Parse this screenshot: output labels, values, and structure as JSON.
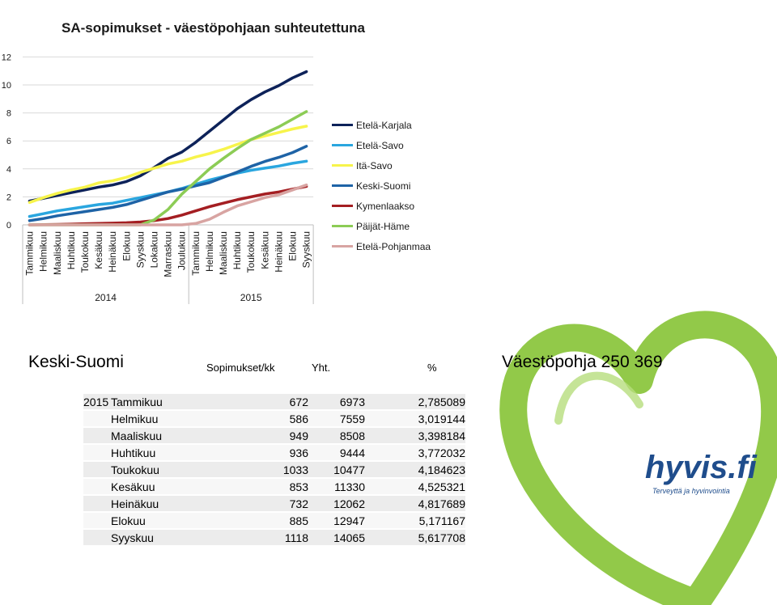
{
  "chart_data": {
    "type": "line",
    "title": "SA-sopimukset - väestöpohjaan suhteutettuna",
    "ylim": [
      0,
      12
    ],
    "yticks": [
      0,
      2,
      4,
      6,
      8,
      10,
      12
    ],
    "grid": "horizontal",
    "legend_position": "right",
    "categories": [
      "Tammikuu",
      "Helmikuu",
      "Maaliskuu",
      "Huhtikuu",
      "Toukokuu",
      "Kesäkuu",
      "Heinäkuu",
      "Elokuu",
      "Syyskuu",
      "Lokakuu",
      "Marraskuu",
      "Joulukuu",
      "Tammikuu",
      "Helmikuu",
      "Maaliskuu",
      "Huhtikuu",
      "Toukokuu",
      "Kesäkuu",
      "Heinäkuu",
      "Elokuu",
      "Syyskuu"
    ],
    "years": [
      {
        "label": "2014",
        "count": 12
      },
      {
        "label": "2015",
        "count": 9
      }
    ],
    "series": [
      {
        "name": "Etelä-Karjala",
        "color": "#0d2259",
        "values": [
          1.7,
          1.9,
          2.1,
          2.3,
          2.5,
          2.7,
          2.85,
          3.1,
          3.5,
          4.1,
          4.75,
          5.2,
          5.9,
          6.7,
          7.5,
          8.3,
          8.95,
          9.5,
          9.95,
          10.5,
          10.95
        ]
      },
      {
        "name": "Etelä-Savo",
        "color": "#2aa6df",
        "values": [
          0.6,
          0.8,
          1.0,
          1.15,
          1.3,
          1.45,
          1.55,
          1.75,
          1.95,
          2.15,
          2.35,
          2.6,
          2.9,
          3.2,
          3.45,
          3.7,
          3.9,
          4.05,
          4.2,
          4.4,
          4.55
        ]
      },
      {
        "name": "Itä-Savo",
        "color": "#f7f44b",
        "values": [
          1.6,
          1.95,
          2.25,
          2.5,
          2.7,
          3.0,
          3.15,
          3.4,
          3.75,
          4.05,
          4.35,
          4.55,
          4.85,
          5.1,
          5.4,
          5.75,
          6.1,
          6.35,
          6.6,
          6.85,
          7.05
        ]
      },
      {
        "name": "Keski-Suomi",
        "color": "#1e63a6",
        "values": [
          0.3,
          0.45,
          0.65,
          0.8,
          0.95,
          1.1,
          1.25,
          1.45,
          1.75,
          2.05,
          2.35,
          2.55,
          2.79,
          3.02,
          3.4,
          3.77,
          4.18,
          4.53,
          4.82,
          5.17,
          5.62
        ]
      },
      {
        "name": "Kymenlaakso",
        "color": "#a41e22",
        "values": [
          0.0,
          0.02,
          0.03,
          0.05,
          0.08,
          0.1,
          0.12,
          0.15,
          0.2,
          0.3,
          0.45,
          0.7,
          1.0,
          1.3,
          1.55,
          1.8,
          2.0,
          2.2,
          2.35,
          2.55,
          2.75
        ]
      },
      {
        "name": "Päijät-Häme",
        "color": "#8ccc55",
        "values": [
          0.0,
          0.0,
          0.0,
          0.0,
          0.0,
          0.0,
          0.0,
          0.0,
          0.0,
          0.35,
          1.1,
          2.2,
          3.1,
          4.0,
          4.75,
          5.45,
          6.1,
          6.55,
          7.0,
          7.55,
          8.1
        ]
      },
      {
        "name": "Etelä-Pohjanmaa",
        "color": "#d8a4a2",
        "values": [
          0.0,
          0.0,
          0.0,
          0.0,
          0.0,
          0.0,
          0.0,
          0.0,
          0.0,
          0.0,
          0.0,
          0.0,
          0.1,
          0.4,
          0.9,
          1.35,
          1.65,
          1.95,
          2.15,
          2.5,
          2.85
        ]
      }
    ]
  },
  "table": {
    "region": "Keski-Suomi",
    "col_monthly": "Sopimukset/kk",
    "col_total": "Yht.",
    "col_pct": "%",
    "population": "Väestöpohja 250 369",
    "rows": [
      {
        "year": "2015",
        "month": "Tammikuu",
        "monthly": "672",
        "total": "6973",
        "pct": "2,785089"
      },
      {
        "year": "",
        "month": "Helmikuu",
        "monthly": "586",
        "total": "7559",
        "pct": "3,019144"
      },
      {
        "year": "",
        "month": "Maaliskuu",
        "monthly": "949",
        "total": "8508",
        "pct": "3,398184"
      },
      {
        "year": "",
        "month": "Huhtikuu",
        "monthly": "936",
        "total": "9444",
        "pct": "3,772032"
      },
      {
        "year": "",
        "month": "Toukokuu",
        "monthly": "1033",
        "total": "10477",
        "pct": "4,184623"
      },
      {
        "year": "",
        "month": "Kesäkuu",
        "monthly": "853",
        "total": "11330",
        "pct": "4,525321"
      },
      {
        "year": "",
        "month": "Heinäkuu",
        "monthly": "732",
        "total": "12062",
        "pct": "4,817689"
      },
      {
        "year": "",
        "month": "Elokuu",
        "monthly": "885",
        "total": "12947",
        "pct": "5,171167"
      },
      {
        "year": "",
        "month": "Syyskuu",
        "monthly": "1118",
        "total": "14065",
        "pct": "5,617708"
      }
    ]
  },
  "logo": {
    "text": "hyvis.fi",
    "tagline": "Terveyttä ja hyvinvointia",
    "color": "#8cc63f"
  }
}
